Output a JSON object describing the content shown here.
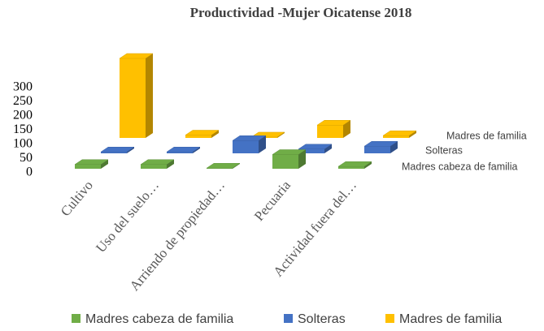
{
  "chart_data": {
    "type": "bar3d",
    "title": "Productividad  -Mujer Oicatense 2018",
    "categories": [
      "Cultivo",
      "Uso del suelo…",
      "Arriendo de propiedad…",
      "Pecuaria",
      "Actividad fuera del…"
    ],
    "series": [
      {
        "name": "Madres cabeza de familia",
        "color": "#70ad47",
        "values": [
          15,
          15,
          2,
          50,
          8
        ]
      },
      {
        "name": "Solteras",
        "color": "#4472c4",
        "values": [
          5,
          5,
          45,
          15,
          25
        ]
      },
      {
        "name": "Madres de familia",
        "color": "#ffc000",
        "values": [
          280,
          10,
          3,
          45,
          8
        ]
      }
    ],
    "ylim": [
      0,
      300
    ],
    "yticks": [
      0,
      50,
      100,
      150,
      200,
      250,
      300
    ],
    "legend": "bottom"
  }
}
